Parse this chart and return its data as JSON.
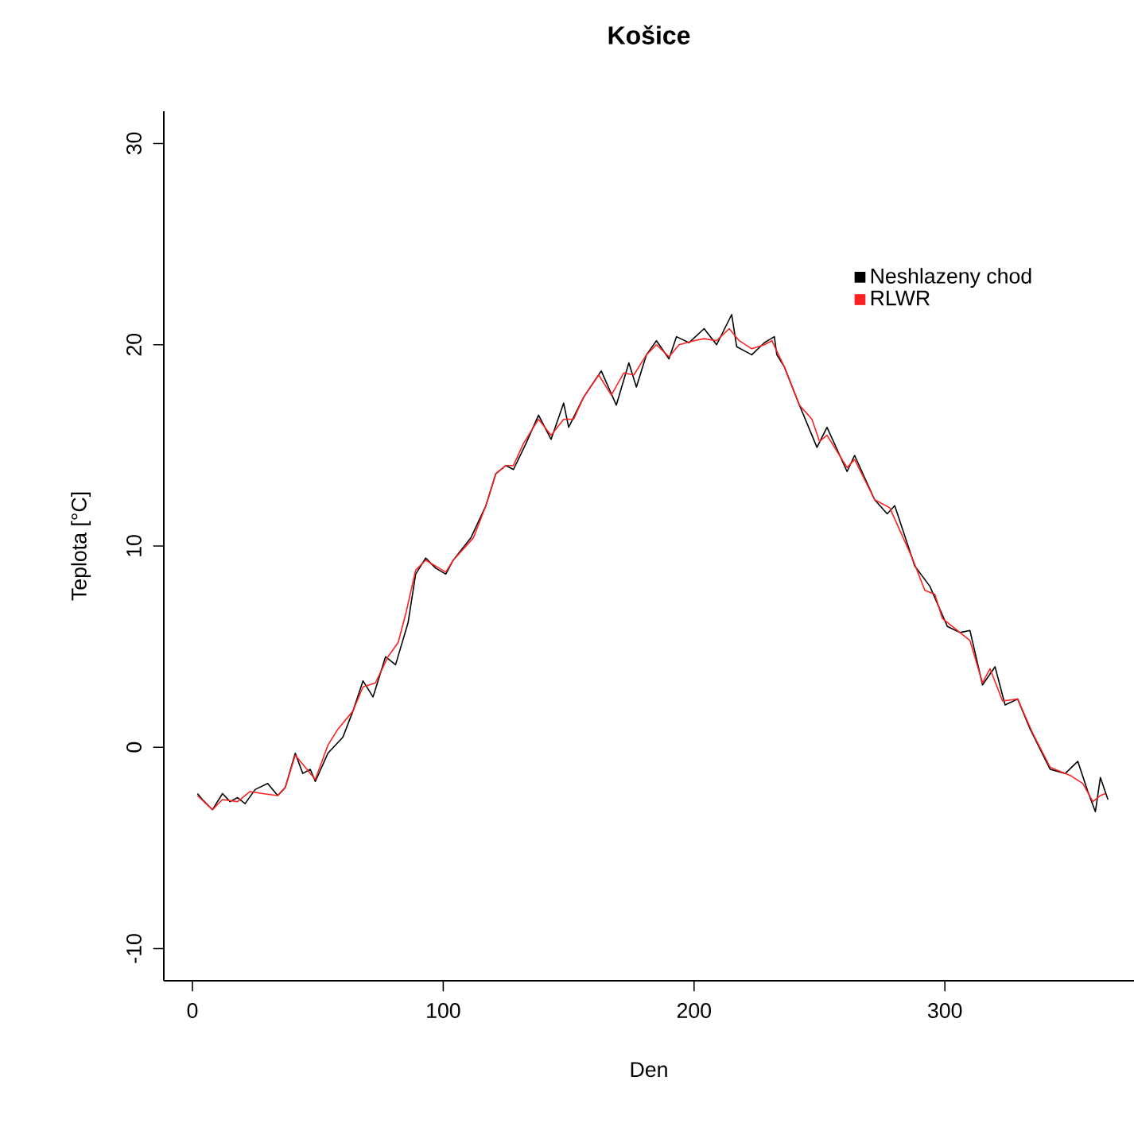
{
  "chart_data": {
    "type": "line",
    "title": "Košice",
    "xlabel": "Den",
    "ylabel": "Teplota [°C]",
    "xlim": [
      -11.4,
      375.4
    ],
    "ylim": [
      -11.6,
      31.6
    ],
    "xticks": [
      0,
      100,
      200,
      300
    ],
    "yticks": [
      -10,
      0,
      10,
      20,
      30
    ],
    "legend": "top right",
    "line_style": "solid",
    "series": [
      {
        "name": "Neshlazeny chod",
        "color": "#000000",
        "x": [
          2,
          4,
          8,
          12,
          15,
          18,
          21,
          25,
          30,
          34,
          37,
          41,
          44,
          47,
          49,
          54,
          60,
          64,
          68,
          72,
          77,
          81,
          86,
          89,
          93,
          97,
          101,
          104,
          111,
          117,
          121,
          125,
          128,
          133,
          138,
          143,
          148,
          150,
          156,
          163,
          169,
          174,
          177,
          181,
          185,
          190,
          193,
          198,
          204,
          209,
          215,
          217,
          223,
          228,
          232,
          233,
          236,
          242,
          249,
          253,
          261,
          264,
          272,
          277,
          280,
          288,
          294,
          301,
          306,
          310,
          315,
          320,
          324,
          329,
          334,
          342,
          348,
          353,
          357,
          360,
          362,
          365
        ],
        "values": [
          -2.3,
          -2.6,
          -3.1,
          -2.3,
          -2.7,
          -2.5,
          -2.8,
          -2.1,
          -1.8,
          -2.4,
          -2.0,
          -0.3,
          -1.3,
          -1.1,
          -1.7,
          -0.3,
          0.5,
          1.8,
          3.3,
          2.5,
          4.5,
          4.1,
          6.2,
          8.6,
          9.4,
          8.9,
          8.6,
          9.3,
          10.4,
          12.0,
          13.6,
          14.0,
          13.8,
          15.1,
          16.5,
          15.3,
          17.1,
          15.9,
          17.4,
          18.7,
          17.0,
          19.1,
          17.9,
          19.5,
          20.2,
          19.3,
          20.4,
          20.1,
          20.8,
          20.0,
          21.5,
          19.9,
          19.5,
          20.1,
          20.4,
          19.5,
          18.9,
          17.0,
          14.9,
          15.9,
          13.7,
          14.5,
          12.3,
          11.6,
          12.0,
          9.0,
          8.0,
          6.0,
          5.7,
          5.8,
          3.1,
          4.0,
          2.1,
          2.4,
          0.9,
          -1.1,
          -1.3,
          -0.7,
          -2.2,
          -3.2,
          -1.5,
          -2.6
        ]
      },
      {
        "name": "RLWR",
        "color": "#ff2020",
        "x": [
          2,
          8,
          12,
          18,
          23,
          28,
          34,
          37,
          41,
          45,
          49,
          54,
          58,
          64,
          68,
          73,
          78,
          82,
          85,
          89,
          93,
          101,
          104,
          112,
          117,
          121,
          125,
          128,
          132,
          138,
          143,
          148,
          152,
          156,
          162,
          167,
          172,
          176,
          181,
          185,
          190,
          194,
          200,
          204,
          209,
          214,
          218,
          223,
          228,
          231,
          236,
          242,
          247,
          250,
          253,
          261,
          264,
          272,
          278,
          287,
          292,
          296,
          299,
          306,
          310,
          315,
          318,
          323,
          329,
          335,
          342,
          350,
          355,
          359,
          362,
          364
        ],
        "values": [
          -2.4,
          -3.1,
          -2.6,
          -2.7,
          -2.2,
          -2.3,
          -2.4,
          -2.0,
          -0.4,
          -1.0,
          -1.6,
          0.1,
          0.9,
          1.8,
          3.0,
          3.2,
          4.5,
          5.2,
          6.6,
          8.8,
          9.3,
          8.7,
          9.3,
          10.4,
          12.0,
          13.6,
          14.0,
          14.0,
          15.1,
          16.3,
          15.5,
          16.3,
          16.3,
          17.4,
          18.5,
          17.5,
          18.6,
          18.5,
          19.5,
          20.0,
          19.4,
          20.0,
          20.2,
          20.3,
          20.2,
          20.8,
          20.2,
          19.8,
          20.0,
          20.2,
          18.9,
          17.0,
          16.3,
          15.2,
          15.5,
          13.9,
          14.3,
          12.3,
          11.9,
          9.4,
          7.8,
          7.6,
          6.4,
          5.7,
          5.3,
          3.2,
          3.9,
          2.3,
          2.4,
          0.7,
          -1.0,
          -1.4,
          -1.8,
          -2.7,
          -2.4,
          -2.3
        ]
      }
    ]
  }
}
